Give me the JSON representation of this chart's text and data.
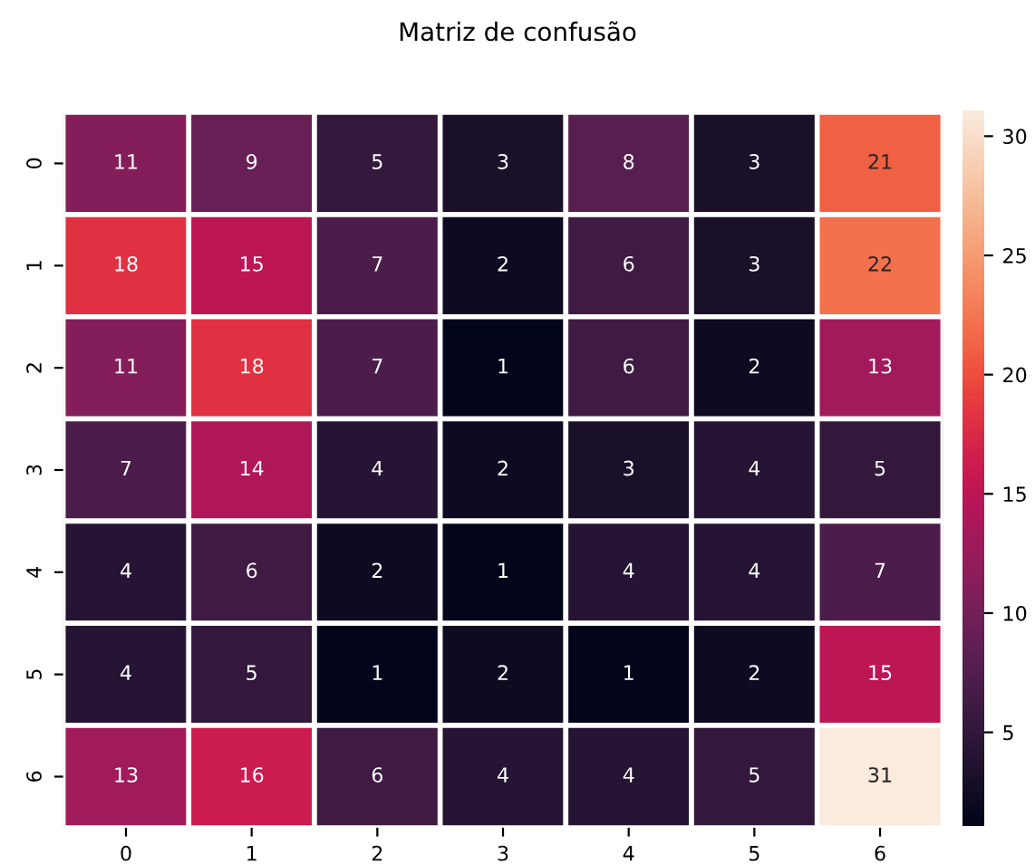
{
  "chart_data": {
    "type": "heatmap",
    "title": "Matriz de confusão",
    "categories": [
      "0",
      "1",
      "2",
      "3",
      "4",
      "5",
      "6"
    ],
    "y_categories": [
      "0",
      "1",
      "2",
      "3",
      "4",
      "5",
      "6"
    ],
    "cells": [
      [
        11,
        9,
        5,
        3,
        8,
        3,
        21
      ],
      [
        18,
        15,
        7,
        2,
        6,
        3,
        22
      ],
      [
        11,
        18,
        7,
        1,
        6,
        2,
        13
      ],
      [
        7,
        14,
        4,
        2,
        3,
        4,
        5
      ],
      [
        4,
        6,
        2,
        1,
        4,
        4,
        7
      ],
      [
        4,
        5,
        1,
        2,
        1,
        2,
        15
      ],
      [
        13,
        16,
        6,
        4,
        4,
        5,
        31
      ]
    ],
    "clim": [
      1,
      31
    ],
    "cticks": [
      5,
      10,
      15,
      20,
      25,
      30
    ],
    "data_labels": true
  }
}
